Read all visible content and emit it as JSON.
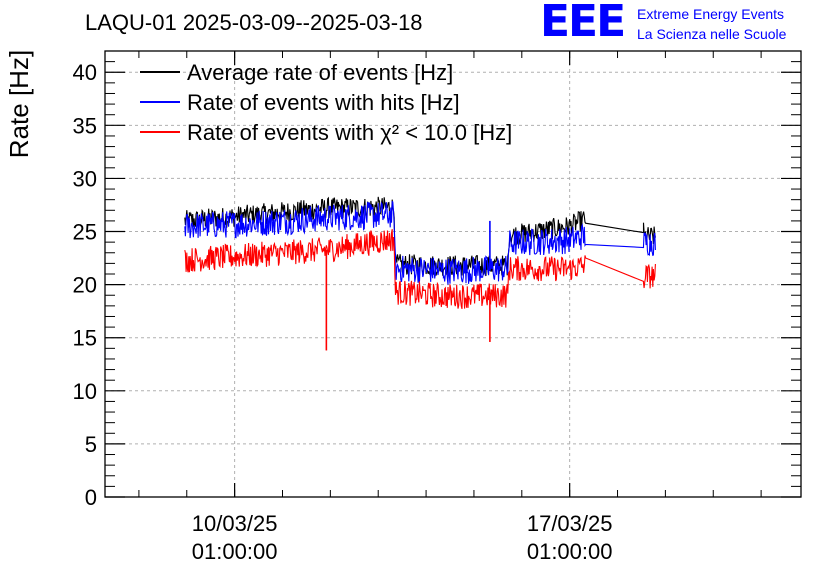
{
  "chart_data": {
    "type": "line",
    "title": "LAQU-01 2025-03-09--2025-03-18",
    "ylabel": "Rate [Hz]",
    "xlabel": "",
    "ylim": [
      0,
      42
    ],
    "yticks": [
      0,
      5,
      10,
      15,
      20,
      25,
      30,
      35,
      40
    ],
    "xlim": [
      "2025-03-07T08:00",
      "2025-03-21T21:00"
    ],
    "xticks": [
      {
        "date": "2025-03-10T01:00",
        "label1": "10/03/25",
        "label2": "01:00:00"
      },
      {
        "date": "2025-03-17T01:00",
        "label1": "17/03/25",
        "label2": "01:00:00"
      }
    ],
    "grid": true,
    "legend_position": "top-left",
    "series": [
      {
        "name": "Average rate of events [Hz]",
        "color": "#000000",
        "points": [
          [
            "2025-03-09T00:00",
            26.0
          ],
          [
            "2025-03-10T12:00",
            26.6
          ],
          [
            "2025-03-12T00:00",
            27.2
          ],
          [
            "2025-03-13T09:00",
            27.3
          ],
          [
            "2025-03-13T09:30",
            21.9
          ],
          [
            "2025-03-14T12:00",
            21.8
          ],
          [
            "2025-03-15T18:00",
            21.8
          ],
          [
            "2025-03-15T18:30",
            24.6
          ],
          [
            "2025-03-17T01:00",
            25.5
          ],
          [
            "2025-03-17T09:00",
            26.2
          ],
          [
            "2025-03-18T14:00",
            24.9
          ],
          [
            "2025-03-18T14:30",
            24.5
          ],
          [
            "2025-03-18T20:00",
            24.5
          ]
        ],
        "noise": 1.0
      },
      {
        "name": "Rate of events with hits [Hz]",
        "color": "#0000ff",
        "points": [
          [
            "2025-03-09T00:00",
            25.5
          ],
          [
            "2025-03-10T12:00",
            25.8
          ],
          [
            "2025-03-12T00:00",
            26.3
          ],
          [
            "2025-03-13T09:00",
            26.6
          ],
          [
            "2025-03-13T09:30",
            21.5
          ],
          [
            "2025-03-14T12:00",
            21.3
          ],
          [
            "2025-03-15T18:00",
            21.5
          ],
          [
            "2025-03-15T18:30",
            23.9
          ],
          [
            "2025-03-17T01:00",
            24.2
          ],
          [
            "2025-03-17T09:00",
            24.6
          ],
          [
            "2025-03-18T14:00",
            23.5
          ],
          [
            "2025-03-18T14:30",
            24.0
          ],
          [
            "2025-03-18T20:00",
            24.0
          ]
        ],
        "noise": 1.3
      },
      {
        "name": "Rate of events with χ² < 10.0 [Hz]",
        "color": "#ff0000",
        "points": [
          [
            "2025-03-09T00:00",
            22.3
          ],
          [
            "2025-03-10T12:00",
            22.8
          ],
          [
            "2025-03-12T00:00",
            23.3
          ],
          [
            "2025-03-13T09:00",
            24.3
          ],
          [
            "2025-03-13T09:30",
            19.3
          ],
          [
            "2025-03-14T12:00",
            18.9
          ],
          [
            "2025-03-15T18:00",
            19.0
          ],
          [
            "2025-03-15T18:30",
            21.5
          ],
          [
            "2025-03-17T01:00",
            21.5
          ],
          [
            "2025-03-17T09:00",
            21.8
          ],
          [
            "2025-03-18T14:00",
            20.3
          ],
          [
            "2025-03-18T14:30",
            20.8
          ],
          [
            "2025-03-18T20:00",
            20.8
          ]
        ],
        "noise": 1.2
      }
    ],
    "annotations": [
      {
        "series": 2,
        "date": "2025-03-11T23:00",
        "value": 13.8
      },
      {
        "series": 2,
        "date": "2025-03-15T09:00",
        "value": 14.6
      },
      {
        "series": 1,
        "date": "2025-03-15T09:00",
        "value": 26.0
      }
    ],
    "gap": [
      "2025-03-17T09:00",
      "2025-03-18T14:00"
    ]
  },
  "logo": {
    "mark": "EEE",
    "line1": "Extreme Energy Events",
    "line2": "La Scienza nelle Scuole"
  }
}
